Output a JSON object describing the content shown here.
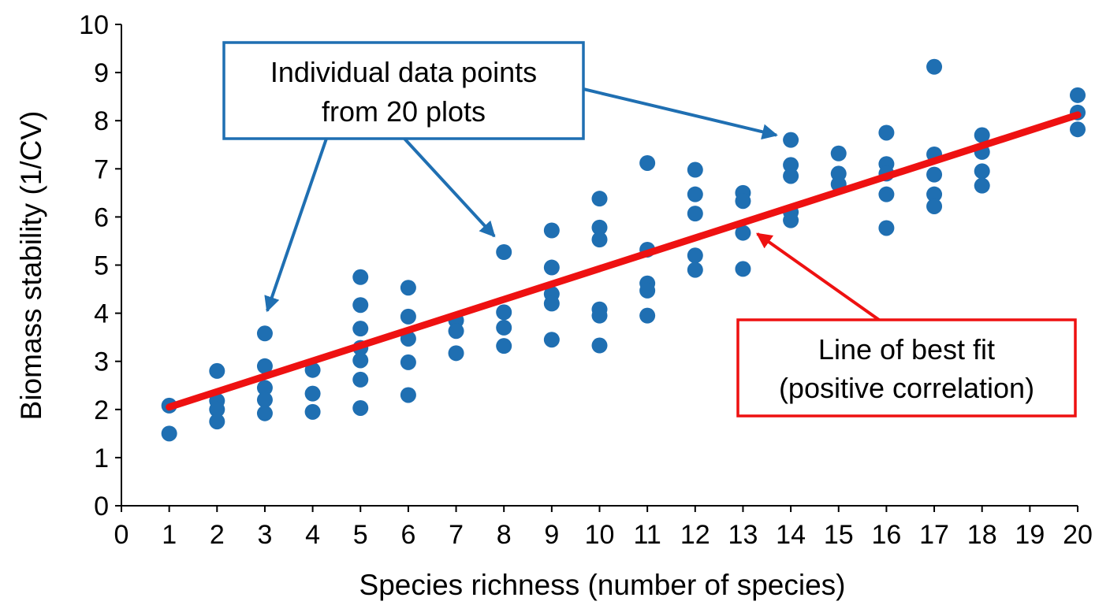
{
  "chart_data": {
    "type": "scatter",
    "xlabel": "Species richness (number of species)",
    "ylabel": "Biomass stability (1/CV)",
    "xlim": [
      0,
      20
    ],
    "ylim": [
      0,
      10
    ],
    "xticks": [
      0,
      1,
      2,
      3,
      4,
      5,
      6,
      7,
      8,
      9,
      10,
      11,
      12,
      13,
      14,
      15,
      16,
      17,
      18,
      19,
      20
    ],
    "yticks": [
      0,
      1,
      2,
      3,
      4,
      5,
      6,
      7,
      8,
      9,
      10
    ],
    "grid": false,
    "colors": {
      "points": "#1f6fb2",
      "fit_line": "#ee1111",
      "callout_blue": "#1f6fb2",
      "callout_red": "#ee1111"
    },
    "points": [
      [
        1,
        2.08
      ],
      [
        1,
        1.5
      ],
      [
        2,
        2.8
      ],
      [
        2,
        2.18
      ],
      [
        2,
        2.0
      ],
      [
        2,
        1.75
      ],
      [
        3,
        3.58
      ],
      [
        3,
        2.9
      ],
      [
        3,
        2.45
      ],
      [
        3,
        2.2
      ],
      [
        3,
        1.92
      ],
      [
        4,
        2.82
      ],
      [
        4,
        2.33
      ],
      [
        4,
        1.95
      ],
      [
        5,
        4.75
      ],
      [
        5,
        4.17
      ],
      [
        5,
        3.68
      ],
      [
        5,
        3.28
      ],
      [
        5,
        3.02
      ],
      [
        5,
        2.62
      ],
      [
        5,
        2.03
      ],
      [
        6,
        4.53
      ],
      [
        6,
        3.93
      ],
      [
        6,
        3.47
      ],
      [
        6,
        2.98
      ],
      [
        6,
        2.3
      ],
      [
        7,
        3.85
      ],
      [
        7,
        3.63
      ],
      [
        7,
        3.17
      ],
      [
        8,
        5.27
      ],
      [
        8,
        4.02
      ],
      [
        8,
        3.7
      ],
      [
        8,
        3.32
      ],
      [
        9,
        5.72
      ],
      [
        9,
        4.95
      ],
      [
        9,
        4.4
      ],
      [
        9,
        4.2
      ],
      [
        9,
        3.45
      ],
      [
        10,
        6.38
      ],
      [
        10,
        5.78
      ],
      [
        10,
        5.53
      ],
      [
        10,
        4.08
      ],
      [
        10,
        3.95
      ],
      [
        10,
        3.33
      ],
      [
        11,
        7.12
      ],
      [
        11,
        5.32
      ],
      [
        11,
        4.62
      ],
      [
        11,
        4.47
      ],
      [
        11,
        3.95
      ],
      [
        12,
        6.98
      ],
      [
        12,
        6.47
      ],
      [
        12,
        6.07
      ],
      [
        12,
        5.2
      ],
      [
        12,
        4.9
      ],
      [
        13,
        6.5
      ],
      [
        13,
        6.33
      ],
      [
        13,
        5.67
      ],
      [
        13,
        4.92
      ],
      [
        14,
        7.6
      ],
      [
        14,
        7.08
      ],
      [
        14,
        6.85
      ],
      [
        14,
        6.1
      ],
      [
        14,
        5.93
      ],
      [
        15,
        7.32
      ],
      [
        15,
        6.9
      ],
      [
        15,
        6.68
      ],
      [
        16,
        7.75
      ],
      [
        16,
        7.1
      ],
      [
        16,
        6.9
      ],
      [
        16,
        6.47
      ],
      [
        16,
        5.77
      ],
      [
        17,
        9.12
      ],
      [
        17,
        7.3
      ],
      [
        17,
        6.88
      ],
      [
        17,
        6.47
      ],
      [
        17,
        6.22
      ],
      [
        18,
        7.7
      ],
      [
        18,
        7.35
      ],
      [
        18,
        6.95
      ],
      [
        18,
        6.65
      ],
      [
        20,
        8.53
      ],
      [
        20,
        8.17
      ],
      [
        20,
        7.82
      ]
    ],
    "fit_line": {
      "x": [
        1,
        20
      ],
      "y": [
        2.05,
        8.12
      ]
    },
    "annotations": [
      {
        "id": "points",
        "lines": [
          "Individual data points",
          "from 20 plots"
        ],
        "color": "blue",
        "arrow_targets": [
          [
            3.05,
            4.05
          ],
          [
            7.8,
            5.6
          ],
          [
            13.7,
            7.7
          ]
        ]
      },
      {
        "id": "fit",
        "lines": [
          "Line of best fit",
          "(positive correlation)"
        ],
        "color": "red",
        "arrow_targets": [
          [
            13.3,
            5.65
          ]
        ]
      }
    ]
  }
}
